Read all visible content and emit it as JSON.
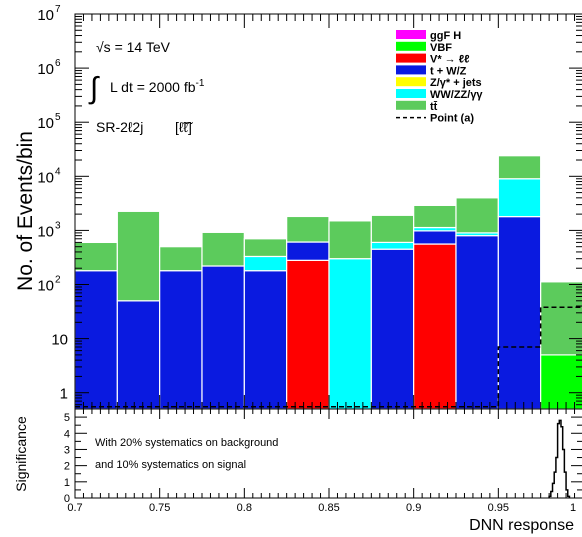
{
  "chart_data": [
    {
      "type": "bar",
      "stacked": true,
      "yscale": "log",
      "ylabel": "No. of Events/bin",
      "ylim": [
        0.5,
        10000000
      ],
      "xlim": [
        0.7,
        1.0
      ],
      "ytick_labels": [
        {
          "v": 1,
          "label": "1"
        },
        {
          "v": 10,
          "label": "10"
        },
        {
          "v": 100,
          "label": "10",
          "exp": "2"
        },
        {
          "v": 1000,
          "label": "10",
          "exp": "3"
        },
        {
          "v": 10000,
          "label": "10",
          "exp": "4"
        },
        {
          "v": 100000,
          "label": "10",
          "exp": "5"
        },
        {
          "v": 1000000,
          "label": "10",
          "exp": "6"
        },
        {
          "v": 10000000,
          "label": "10",
          "exp": "7"
        }
      ],
      "bin_edges": [
        0.7,
        0.725,
        0.75,
        0.775,
        0.8,
        0.825,
        0.85,
        0.875,
        0.9,
        0.925,
        0.95,
        0.975,
        1.0
      ],
      "annotations": {
        "energy": "√s = 14 TeV",
        "lumi_integral": "∫",
        "lumi_text": "L dt = 2000 fb",
        "lumi_exp": "-1",
        "region": "SR-2ℓ2j",
        "region_symbol": "[ℓ̃ℓ̃]"
      },
      "series": [
        {
          "name": "ggF H",
          "color": "#ff00ff",
          "kind": "fill",
          "values": [
            0,
            0,
            0,
            0,
            0,
            0,
            0,
            0,
            0,
            0,
            0,
            0
          ]
        },
        {
          "name": "VBF",
          "color": "#00ff00",
          "kind": "fill",
          "values": [
            0,
            0,
            0,
            0,
            0,
            0,
            0,
            0,
            0,
            0,
            0,
            5
          ]
        },
        {
          "name": "V* → ℓℓ",
          "color": "#ff0000",
          "kind": "fill",
          "values": [
            0,
            0,
            0,
            0,
            0,
            280,
            0,
            0,
            560,
            0,
            0,
            0
          ]
        },
        {
          "name": "t + W/Z",
          "color": "#0a1ae0",
          "kind": "fill",
          "values": [
            180,
            50,
            180,
            220,
            180,
            330,
            0,
            450,
            420,
            800,
            1800,
            0
          ]
        },
        {
          "name": "Z/γ* + jets",
          "color": "#ffff00",
          "kind": "fill",
          "values": [
            0,
            0,
            0,
            0,
            0,
            0,
            0,
            0,
            0,
            0,
            0,
            0
          ]
        },
        {
          "name": "WW/ZZ/γγ",
          "color": "#00ffff",
          "kind": "fill",
          "values": [
            0,
            0,
            0,
            0,
            150,
            0,
            300,
            150,
            150,
            100,
            7200,
            0
          ]
        },
        {
          "name": "tt̄",
          "color": "#5ccb5c",
          "kind": "fill",
          "values": [
            420,
            2200,
            320,
            700,
            370,
            1200,
            1200,
            1300,
            1770,
            3100,
            15000,
            107
          ]
        },
        {
          "name": "Point (a)",
          "color": "#000000",
          "kind": "dashed",
          "values": [
            0.55,
            0.55,
            0.55,
            0.55,
            0.55,
            0.55,
            0.55,
            0.55,
            0.55,
            0.55,
            7,
            38
          ]
        }
      ]
    },
    {
      "type": "line",
      "xlabel": "DNN response",
      "ylabel": "Significance",
      "xlim": [
        0.7,
        1.0
      ],
      "ylim": [
        0,
        5.5
      ],
      "x_ticks": [
        0.7,
        0.75,
        0.8,
        0.85,
        0.9,
        0.95,
        1
      ],
      "x_tick_labels": [
        "0.7",
        "0.75",
        "0.8",
        "0.85",
        "0.9",
        "0.95",
        "1"
      ],
      "y_ticks": [
        0,
        1,
        2,
        3,
        4,
        5
      ],
      "y_tick_labels": [
        "0",
        "1",
        "2",
        "3",
        "4",
        "5"
      ],
      "text": [
        "With 20% systematics on background",
        "and 10% systematics on signal"
      ],
      "x": [
        0.98,
        0.981,
        0.982,
        0.983,
        0.984,
        0.985,
        0.986,
        0.987,
        0.988,
        0.989,
        0.99,
        0.991
      ],
      "y": [
        0.1,
        0.4,
        0.9,
        1.6,
        2.5,
        4.6,
        4.8,
        4.4,
        3.0,
        1.6,
        0.5,
        0.1
      ]
    }
  ]
}
